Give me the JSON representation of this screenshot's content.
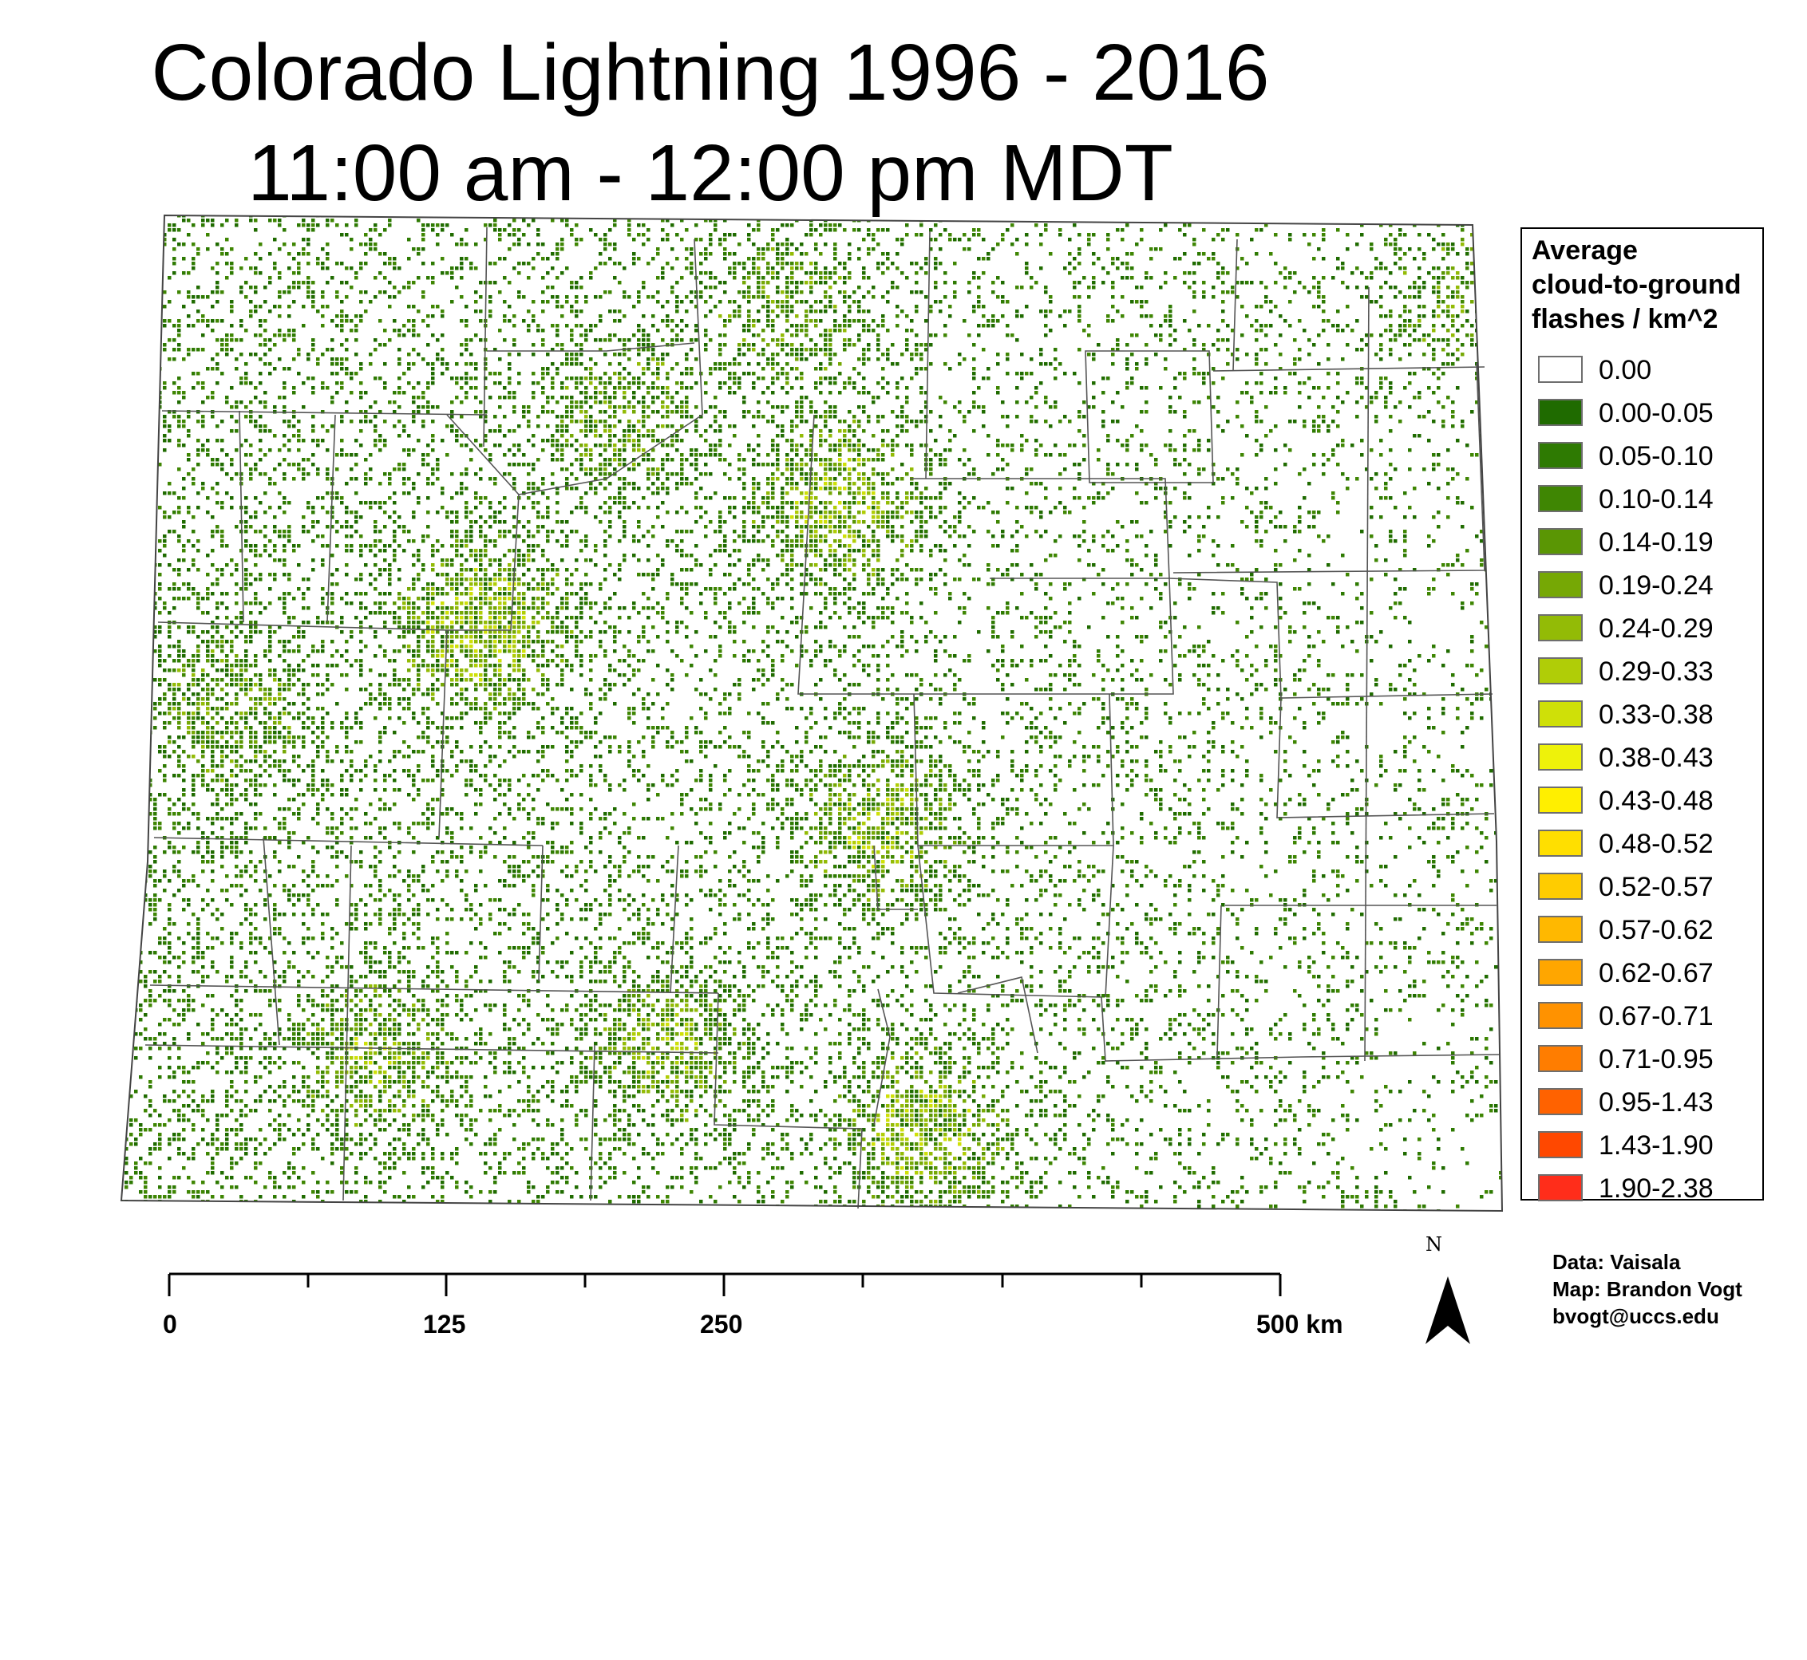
{
  "title": {
    "line1": "Colorado Lightning 1996 - 2016",
    "line2": "11:00 am - 12:00 pm MDT"
  },
  "legend": {
    "title_lines": [
      "Average",
      "cloud-to-ground",
      "flashes / km^2"
    ],
    "classes": [
      {
        "label": "0.00",
        "color": "#ffffff"
      },
      {
        "label": "0.00-0.05",
        "color": "#1f6b00"
      },
      {
        "label": "0.05-0.10",
        "color": "#2e7a02"
      },
      {
        "label": "0.10-0.14",
        "color": "#3f8603"
      },
      {
        "label": "0.14-0.19",
        "color": "#5a9604"
      },
      {
        "label": "0.19-0.24",
        "color": "#76a805"
      },
      {
        "label": "0.24-0.29",
        "color": "#93bb06"
      },
      {
        "label": "0.29-0.33",
        "color": "#b0cd07"
      },
      {
        "label": "0.33-0.38",
        "color": "#cfe008"
      },
      {
        "label": "0.38-0.43",
        "color": "#eef20a"
      },
      {
        "label": "0.43-0.48",
        "color": "#ffef00"
      },
      {
        "label": "0.48-0.52",
        "color": "#ffdf00"
      },
      {
        "label": "0.52-0.57",
        "color": "#ffcc00"
      },
      {
        "label": "0.57-0.62",
        "color": "#ffb800"
      },
      {
        "label": "0.62-0.67",
        "color": "#ffa600"
      },
      {
        "label": "0.67-0.71",
        "color": "#ff9200"
      },
      {
        "label": "0.71-0.95",
        "color": "#ff7d00"
      },
      {
        "label": "0.95-1.43",
        "color": "#ff6200"
      },
      {
        "label": "1.43-1.90",
        "color": "#ff4800"
      },
      {
        "label": "1.90-2.38",
        "color": "#ff2d1a"
      }
    ]
  },
  "scale_bar": {
    "unit": "km",
    "labels": [
      {
        "value": "0"
      },
      {
        "value": "125"
      },
      {
        "value": "250"
      },
      {
        "value": "500 km"
      }
    ]
  },
  "north_arrow": {
    "letter": "N"
  },
  "credits": {
    "data": "Data: Vaisala",
    "map": "Map: Brandon Vogt",
    "email": "bvogt@uccs.edu"
  },
  "hotspots": [
    {
      "lon": -107.3,
      "lat": 39.35,
      "density": 0.3
    },
    {
      "lon": -105.2,
      "lat": 38.55,
      "density": 0.25
    },
    {
      "lon": -105.45,
      "lat": 39.85,
      "density": 0.26
    },
    {
      "lon": -105.0,
      "lat": 37.3,
      "density": 0.28
    },
    {
      "lon": -106.3,
      "lat": 37.65,
      "density": 0.22
    },
    {
      "lon": -107.8,
      "lat": 37.6,
      "density": 0.2
    },
    {
      "lon": -108.6,
      "lat": 39.0,
      "density": 0.18
    },
    {
      "lon": -102.1,
      "lat": 40.7,
      "density": 0.16
    },
    {
      "lon": -105.7,
      "lat": 40.6,
      "density": 0.18
    },
    {
      "lon": -106.6,
      "lat": 40.2,
      "density": 0.17
    }
  ]
}
